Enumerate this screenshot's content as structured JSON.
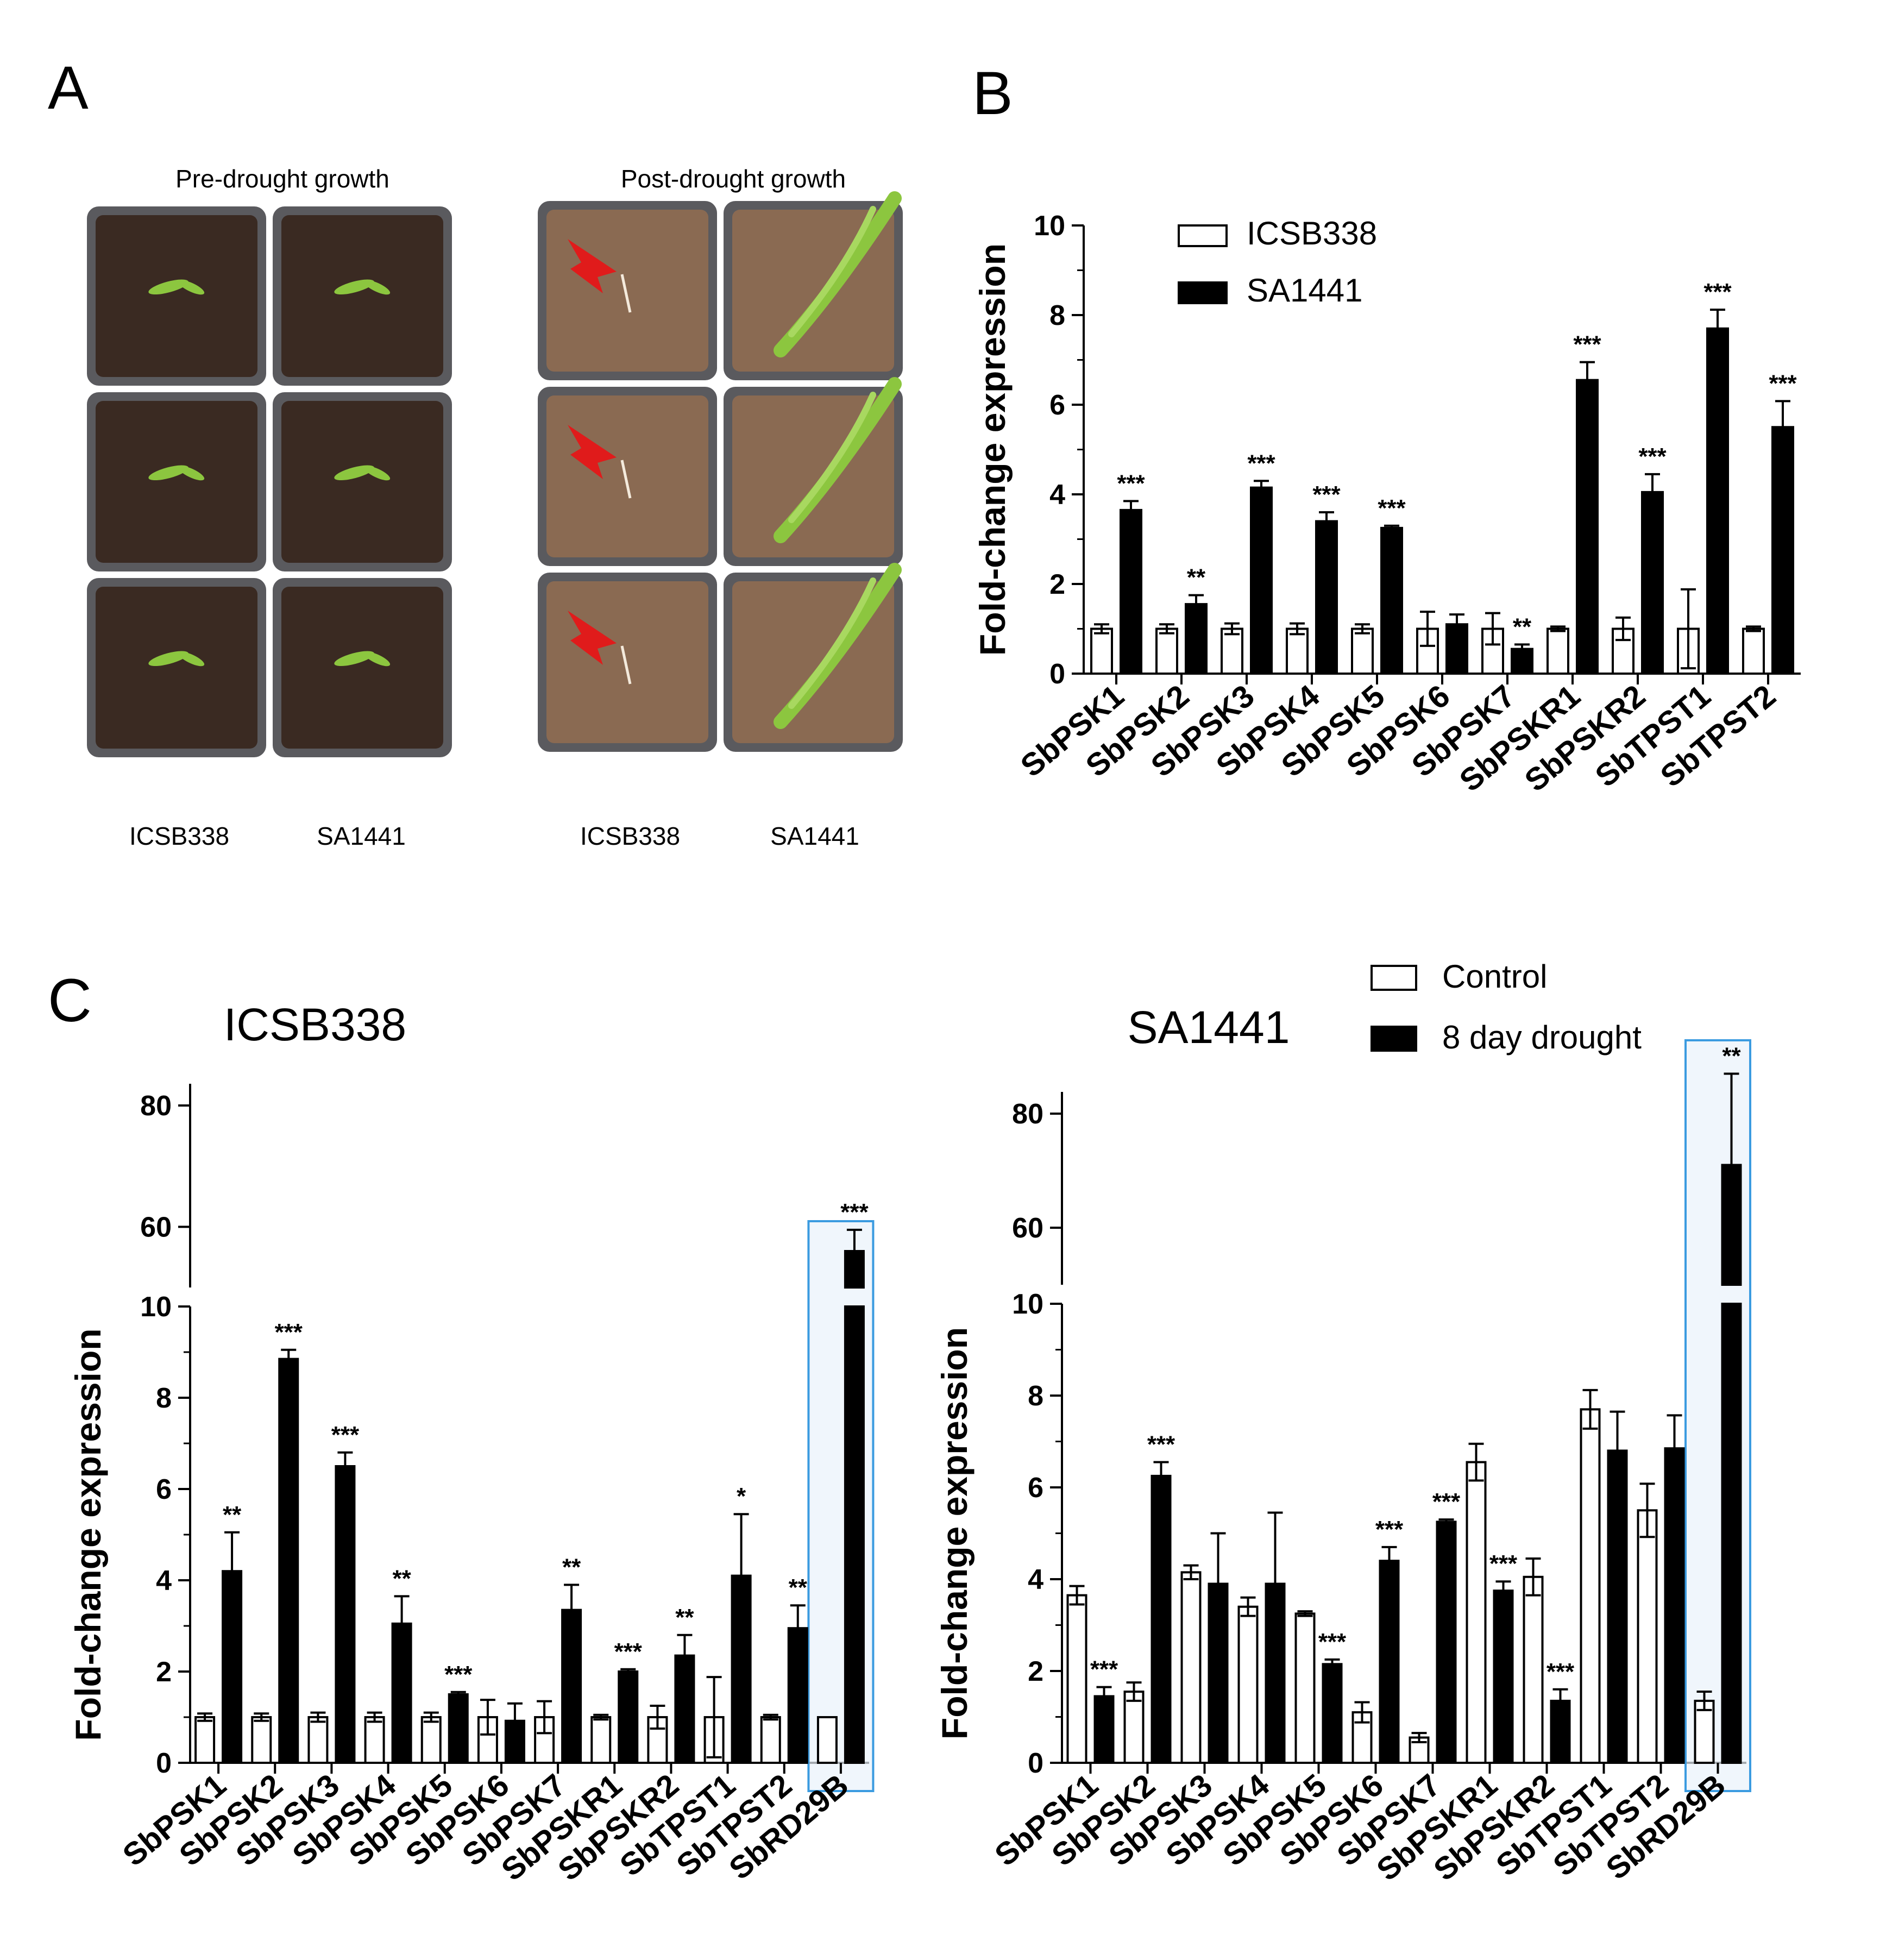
{
  "panels": {
    "a": "A",
    "b": "B",
    "c": "C"
  },
  "photo": {
    "pre_title": "Pre-drought growth",
    "post_title": "Post-drought growth",
    "pre_labels": [
      "ICSB338",
      "SA1441"
    ],
    "post_labels": [
      "ICSB338",
      "SA1441"
    ],
    "colors": {
      "soil_dark": "#3a2a22",
      "soil_light": "#8a6a52",
      "tray": "#5a5a5e",
      "seedling": "#8cc63f",
      "arrow": "#e01b1b"
    }
  },
  "chart_data": [
    {
      "id": "B",
      "type": "bar",
      "ylabel": "Fold-change expression",
      "ylim": [
        0,
        10
      ],
      "yticks": [
        0,
        2,
        4,
        6,
        8,
        10
      ],
      "categories": [
        "SbPSK1",
        "SbPSK2",
        "SbPSK3",
        "SbPSK4",
        "SbPSK5",
        "SbPSK6",
        "SbPSK7",
        "SbPSKR1",
        "SbPSKR2",
        "SbTPST1",
        "SbTPST2"
      ],
      "series": [
        {
          "name": "ICSB338",
          "fill": "#ffffff",
          "values": [
            1.0,
            1.0,
            1.0,
            1.0,
            1.0,
            1.0,
            1.0,
            1.0,
            1.0,
            1.0,
            1.0
          ],
          "errors": [
            0.1,
            0.1,
            0.12,
            0.12,
            0.1,
            0.38,
            0.35,
            0.05,
            0.25,
            0.88,
            0.05
          ]
        },
        {
          "name": "SA1441",
          "fill": "#000000",
          "values": [
            3.65,
            1.55,
            4.15,
            3.4,
            3.25,
            1.1,
            0.55,
            6.55,
            4.05,
            7.7,
            5.5
          ],
          "errors": [
            0.2,
            0.2,
            0.15,
            0.2,
            0.05,
            0.22,
            0.1,
            0.4,
            0.4,
            0.42,
            0.58
          ]
        }
      ],
      "significance": [
        "***",
        "**",
        "***",
        "***",
        "***",
        "",
        "**",
        "***",
        "***",
        "***",
        "***"
      ],
      "legend_position": "top-left"
    },
    {
      "id": "C-ICSB338",
      "type": "bar",
      "title": "ICSB338",
      "ylabel": "Fold-change expression",
      "ylim": [
        0,
        80
      ],
      "axis_break": [
        10,
        50
      ],
      "yticks": [
        0,
        2,
        4,
        6,
        8,
        10,
        60,
        80
      ],
      "categories": [
        "SbPSK1",
        "SbPSK2",
        "SbPSK3",
        "SbPSK4",
        "SbPSK5",
        "SbPSK6",
        "SbPSK7",
        "SbPSKR1",
        "SbPSKR2",
        "SbTPST1",
        "SbTPST2",
        "SbRD29B"
      ],
      "series": [
        {
          "name": "Control",
          "fill": "#ffffff",
          "values": [
            1.0,
            1.0,
            1.0,
            1.0,
            1.0,
            1.0,
            1.0,
            1.0,
            1.0,
            1.0,
            1.0,
            1.0
          ],
          "errors": [
            0.08,
            0.08,
            0.1,
            0.1,
            0.1,
            0.38,
            0.35,
            0.05,
            0.25,
            0.88,
            0.05,
            0.0
          ]
        },
        {
          "name": "8 day drought",
          "fill": "#000000",
          "values": [
            4.2,
            8.85,
            6.5,
            3.05,
            1.5,
            0.92,
            3.35,
            2.0,
            2.35,
            4.1,
            2.95,
            56
          ],
          "errors": [
            0.85,
            0.2,
            0.3,
            0.6,
            0.05,
            0.38,
            0.55,
            0.05,
            0.45,
            1.35,
            0.5,
            3.5
          ]
        }
      ],
      "significance": [
        "**",
        "***",
        "***",
        "**",
        "***",
        "",
        "**",
        "***",
        "**",
        "*",
        "**",
        "***"
      ],
      "highlight_category": "SbRD29B"
    },
    {
      "id": "C-SA1441",
      "type": "bar",
      "title": "SA1441",
      "ylabel": "Fold-change expression",
      "ylim": [
        0,
        80
      ],
      "axis_break": [
        10,
        50
      ],
      "yticks": [
        0,
        2,
        4,
        6,
        8,
        10,
        60,
        80
      ],
      "categories": [
        "SbPSK1",
        "SbPSK2",
        "SbPSK3",
        "SbPSK4",
        "SbPSK5",
        "SbPSK6",
        "SbPSK7",
        "SbPSKR1",
        "SbPSKR2",
        "SbTPST1",
        "SbTPST2",
        "SbRD29B"
      ],
      "series": [
        {
          "name": "Control",
          "fill": "#ffffff",
          "values": [
            3.65,
            1.55,
            4.15,
            3.4,
            3.25,
            1.1,
            0.55,
            6.55,
            4.05,
            7.7,
            5.5,
            1.35
          ],
          "errors": [
            0.2,
            0.2,
            0.15,
            0.2,
            0.05,
            0.22,
            0.1,
            0.4,
            0.4,
            0.42,
            0.58,
            0.2
          ]
        },
        {
          "name": "8 day drought",
          "fill": "#000000",
          "values": [
            1.45,
            6.25,
            3.9,
            3.9,
            2.15,
            4.4,
            5.25,
            3.75,
            1.35,
            6.8,
            6.85,
            71
          ],
          "errors": [
            0.2,
            0.3,
            1.1,
            1.55,
            0.1,
            0.3,
            0.05,
            0.2,
            0.25,
            0.85,
            0.72,
            16
          ]
        }
      ],
      "significance": [
        "***",
        "***",
        "",
        "",
        "***",
        "***",
        "***",
        "***",
        "***",
        "",
        "",
        "**"
      ],
      "highlight_category": "SbRD29B",
      "legend_position": "top-right"
    }
  ]
}
